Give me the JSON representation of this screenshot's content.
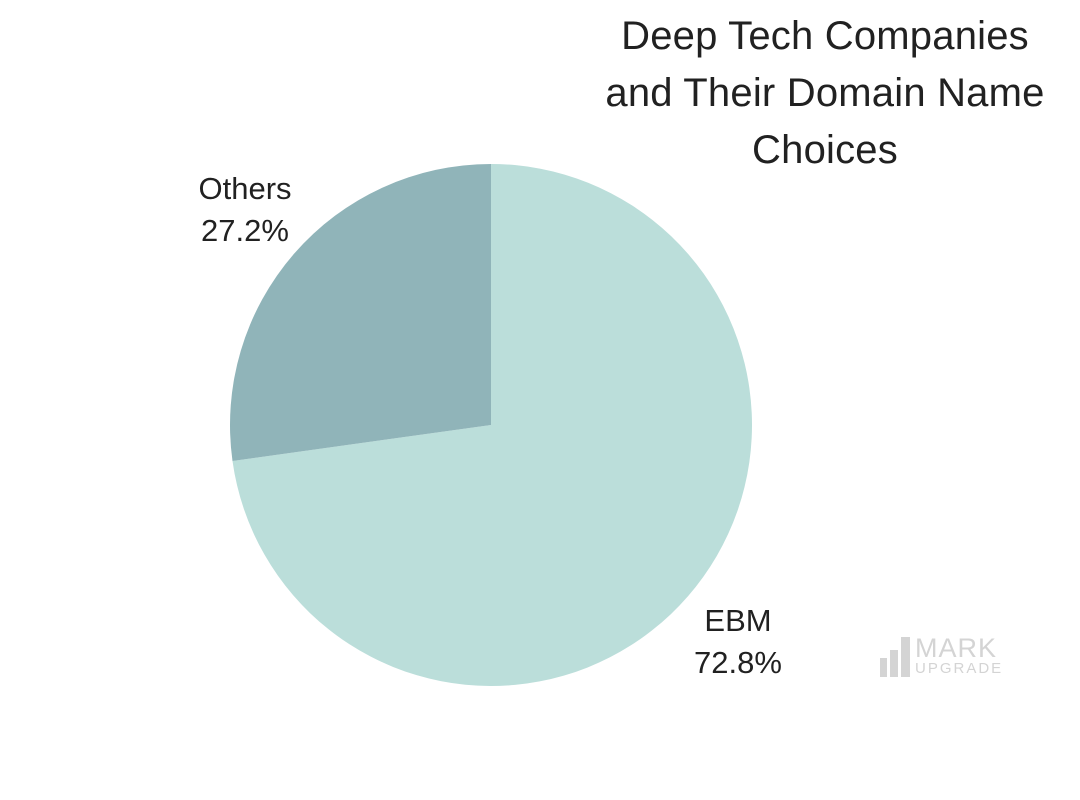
{
  "page": {
    "background_color": "#ffffff"
  },
  "title": {
    "text": "Deep Tech Companies and Their Domain Name Choices",
    "lines": [
      "Deep Tech Companies",
      "and Their Domain Name",
      "Choices"
    ]
  },
  "chart_data": {
    "type": "pie",
    "title": "Deep Tech Companies and Their Domain Name Choices",
    "start_angle_deg": 0,
    "direction": "clockwise",
    "legend": "none",
    "labels_position": "outside",
    "unit": "%",
    "slices": [
      {
        "label": "EBM",
        "value": 72.8,
        "percent_label": "72.8%",
        "color": "#bbdeda"
      },
      {
        "label": "Others",
        "value": 27.2,
        "percent_label": "27.2%",
        "color": "#90b4b9"
      }
    ]
  },
  "watermark": {
    "name": "MARK UPGRADE",
    "line1": "MARK",
    "line2": "UPGRADE",
    "icon": "bar-chart-icon",
    "color": "#d4d4d4"
  }
}
